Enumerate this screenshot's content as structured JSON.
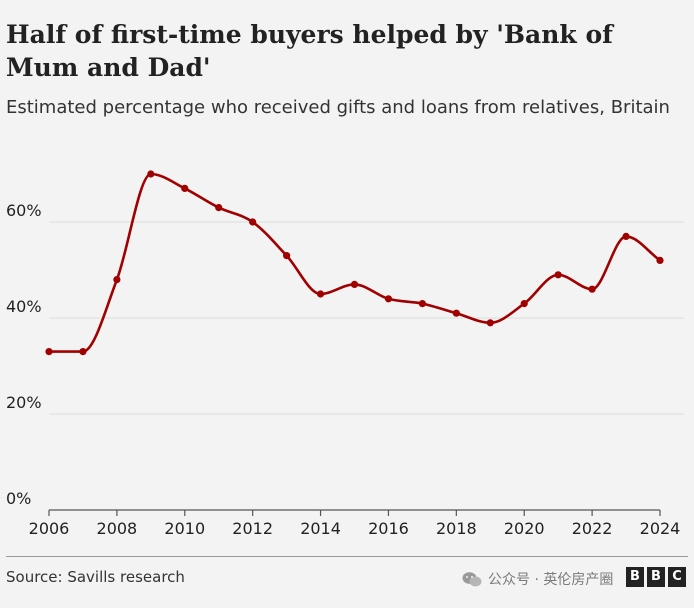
{
  "chart_data": {
    "type": "line",
    "title": "Half of first-time buyers helped by 'Bank of Mum and Dad'",
    "subtitle": "Estimated percentage who received gifts and loans from relatives, Britain",
    "x": [
      2006,
      2007,
      2008,
      2009,
      2010,
      2011,
      2012,
      2013,
      2014,
      2015,
      2016,
      2017,
      2018,
      2019,
      2020,
      2021,
      2022,
      2023,
      2024
    ],
    "series": [
      {
        "values": [
          33,
          33,
          48,
          70,
          67,
          63,
          60,
          53,
          45,
          47,
          44,
          43,
          41,
          39,
          43,
          49,
          46,
          57,
          52
        ]
      }
    ],
    "x_ticks": [
      2006,
      2008,
      2010,
      2012,
      2014,
      2016,
      2018,
      2020,
      2022,
      2024
    ],
    "x_tick_labels": [
      "2006",
      "2008",
      "2010",
      "2012",
      "2014",
      "2016",
      "2018",
      "2020",
      "2022",
      "2024"
    ],
    "y_ticks": [
      0,
      20,
      40,
      60
    ],
    "y_tick_labels": [
      "0%",
      "20%",
      "40%",
      "60%"
    ],
    "xlim": [
      2006,
      2024
    ],
    "ylim": [
      0,
      70
    ],
    "grid": true,
    "xlabel": "",
    "ylabel": "",
    "line_color": "#a00000"
  },
  "source": "Source: Savills research",
  "watermark": {
    "text": "公众号 · 英伦房产圈",
    "icon": "wechat-icon"
  },
  "logo": {
    "letters": [
      "B",
      "B",
      "C"
    ]
  }
}
